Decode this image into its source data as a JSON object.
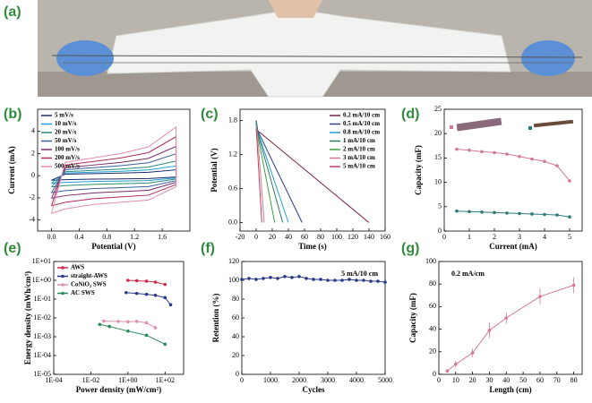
{
  "photo_panel": {
    "label": "(a)"
  },
  "chart_data": [
    {
      "type": "line",
      "label": "(b)",
      "x_label": "Potential (V)",
      "y_label": "Current (mA)",
      "xlim": [
        -0.2,
        2.0
      ],
      "xticks": [
        {
          "value": 0,
          "label": "0.0"
        },
        0.4,
        0.8,
        1.2,
        1.6
      ],
      "ylim": [
        -5,
        6
      ],
      "yticks": [
        -4,
        -2,
        0,
        2,
        4
      ],
      "legend": "upper left",
      "marker": false,
      "x": [
        0,
        0.2,
        0.6,
        1.0,
        1.4,
        1.8,
        1.8,
        1.4,
        1.0,
        0.6,
        0.2,
        0
      ],
      "series": [
        {
          "name": "5 mV/s",
          "color": "#1f2a6b",
          "values": [
            -0.41,
            0.14,
            0.19,
            0.24,
            0.31,
            0.53,
            -0.12,
            -0.26,
            -0.29,
            -0.31,
            -0.36,
            -0.41
          ]
        },
        {
          "name": "10 mV/s",
          "color": "#1e9fd6",
          "values": [
            -0.68,
            0.24,
            0.32,
            0.4,
            0.52,
            0.88,
            -0.2,
            -0.44,
            -0.48,
            -0.52,
            -0.6,
            -0.68
          ]
        },
        {
          "name": "20 mV/s",
          "color": "#2a8a7a",
          "values": [
            -1.02,
            0.36,
            0.48,
            0.6,
            0.78,
            1.32,
            -0.3,
            -0.66,
            -0.72,
            -0.78,
            -0.9,
            -1.02
          ]
        },
        {
          "name": "50 mV/s",
          "color": "#3a5fa0",
          "values": [
            -1.53,
            0.54,
            0.72,
            0.9,
            1.17,
            1.98,
            -0.45,
            -0.99,
            -1.08,
            -1.17,
            -1.35,
            -1.53
          ]
        },
        {
          "name": "100 mV/s",
          "color": "#7a2a6a",
          "values": [
            -2.04,
            0.72,
            0.96,
            1.2,
            1.56,
            2.64,
            -0.6,
            -1.32,
            -1.44,
            -1.56,
            -1.8,
            -2.04
          ]
        },
        {
          "name": "200 mV/s",
          "color": "#b02a5a",
          "values": [
            -2.72,
            0.96,
            1.28,
            1.6,
            2.08,
            3.52,
            -0.8,
            -1.76,
            -1.92,
            -2.08,
            -2.4,
            -2.72
          ]
        },
        {
          "name": "500 mV/s",
          "color": "#e08fb0",
          "values": [
            -3.4,
            1.2,
            1.6,
            2.0,
            2.6,
            4.4,
            -1.0,
            -2.2,
            -2.4,
            -2.6,
            -3.0,
            -3.4
          ]
        }
      ]
    },
    {
      "type": "line",
      "label": "(c)",
      "x_label": "Time (s)",
      "y_label": "Potential (V)",
      "xlim": [
        -20,
        160
      ],
      "xticks": [
        -20,
        0,
        20,
        40,
        60,
        80,
        100,
        120,
        140,
        160
      ],
      "ylim": [
        -0.15,
        2.0
      ],
      "yticks": [
        {
          "value": 0,
          "label": "0.0"
        },
        0.6,
        1.2,
        1.8
      ],
      "legend": "upper right",
      "marker": false,
      "series": [
        {
          "name": "0.2 mA/10 cm",
          "color": "#7a1f4a",
          "x": [
            0,
            2,
            140
          ],
          "values": [
            1.8,
            1.62,
            0
          ]
        },
        {
          "name": "0.5 mA/10 cm",
          "color": "#2a3f8f",
          "x": [
            0,
            2,
            57
          ],
          "values": [
            1.8,
            1.62,
            0
          ]
        },
        {
          "name": "0.8 mA/10 cm",
          "color": "#1e9fd6",
          "x": [
            0,
            2,
            40
          ],
          "values": [
            1.78,
            1.6,
            0
          ]
        },
        {
          "name": "1  mA/10 cm",
          "color": "#2a7a6a",
          "x": [
            0,
            2,
            33
          ],
          "values": [
            1.76,
            1.58,
            0
          ]
        },
        {
          "name": "2  mA/10 cm",
          "color": "#3da33d",
          "x": [
            0,
            2,
            23
          ],
          "values": [
            1.72,
            1.54,
            0
          ]
        },
        {
          "name": "3  mA/10 cm",
          "color": "#d07b8f",
          "x": [
            0,
            2,
            10
          ],
          "values": [
            1.7,
            1.5,
            0
          ]
        },
        {
          "name": "5  mA/10 cm",
          "color": "#c04060",
          "x": [
            0,
            1,
            7
          ],
          "values": [
            1.66,
            1.46,
            0
          ]
        }
      ]
    },
    {
      "type": "line",
      "label": "(d)",
      "x_label": "Current (mA)",
      "y_label": "Capacity (mF)",
      "xlim": [
        0,
        5.5
      ],
      "xticks": [
        0,
        1,
        2,
        3,
        4,
        5
      ],
      "ylim": [
        0,
        25
      ],
      "yticks": [
        0,
        5,
        10,
        15,
        20,
        25
      ],
      "marker": true,
      "x": [
        0.5,
        1,
        1.5,
        2,
        2.5,
        3,
        3.5,
        4,
        4.5,
        5
      ],
      "series": [
        {
          "color": "#d4789a",
          "values": [
            16.8,
            16.6,
            16.3,
            16.1,
            15.8,
            15.3,
            14.8,
            14.3,
            13.4,
            10.3
          ]
        },
        {
          "color": "#2a7a7a",
          "values": [
            4.1,
            4.0,
            3.9,
            3.8,
            3.7,
            3.6,
            3.5,
            3.4,
            3.3,
            2.9
          ]
        }
      ]
    },
    {
      "type": "line",
      "label": "(e)",
      "x_label": "Power density (mW/cm²)",
      "y_label": "Energy density (mWh/cm³)",
      "xscale": "log",
      "yscale": "log",
      "xlim": [
        0.0001,
        1000
      ],
      "xticks": [
        {
          "value": 0.0001,
          "label": "1E-04"
        },
        {
          "value": 0.01,
          "label": "1E-02"
        },
        {
          "value": 1,
          "label": "1E+00"
        },
        {
          "value": 100,
          "label": "1E+02"
        }
      ],
      "ylim": [
        1e-05,
        10
      ],
      "yticks": [
        {
          "value": 1e-05,
          "label": "1E-05"
        },
        {
          "value": 0.0001,
          "label": "1E-04"
        },
        {
          "value": 0.001,
          "label": "1E-03"
        },
        {
          "value": 0.01,
          "label": "1E-02"
        },
        {
          "value": 0.1,
          "label": "1E-01"
        },
        {
          "value": 1,
          "label": "1E+00"
        },
        {
          "value": 10,
          "label": "1E+01"
        }
      ],
      "legend": "upper left",
      "marker": true,
      "series": [
        {
          "name": "AWS",
          "color": "#d02a4a",
          "x": [
            1,
            3,
            10,
            30,
            100
          ],
          "values": [
            1,
            0.95,
            0.9,
            0.8,
            0.6
          ]
        },
        {
          "name": "straight-AWS",
          "color": "#2a3a8a",
          "x": [
            0.8,
            3,
            10,
            30,
            100,
            200
          ],
          "values": [
            0.22,
            0.2,
            0.18,
            0.16,
            0.12,
            0.05
          ]
        },
        {
          "name": "CoNiO₂ SWS",
          "color": "#e08fb0",
          "x": [
            0.05,
            0.3,
            1,
            3,
            10,
            30
          ],
          "values": [
            0.0068,
            0.0065,
            0.0063,
            0.0065,
            0.0055,
            0.003
          ]
        },
        {
          "name": "AC SWS",
          "color": "#2a8a5a",
          "x": [
            0.03,
            0.1,
            1,
            10,
            100
          ],
          "values": [
            0.0045,
            0.0035,
            0.002,
            0.0012,
            0.0004
          ]
        }
      ]
    },
    {
      "type": "line",
      "label": "(f)",
      "x_label": "Cycles",
      "y_label": "Retention (%)",
      "annotation": "5 mA/10 cm",
      "xlim": [
        0,
        5000
      ],
      "xticks": [
        0,
        1000,
        2000,
        3000,
        4000,
        5000
      ],
      "ylim": [
        0,
        120
      ],
      "yticks": [
        0,
        20,
        40,
        60,
        80,
        100,
        120
      ],
      "marker": true,
      "x": [
        0,
        250,
        500,
        750,
        1000,
        1250,
        1500,
        1750,
        2000,
        2250,
        2500,
        2750,
        3000,
        3250,
        3500,
        3750,
        4000,
        4250,
        4500,
        4750,
        5000
      ],
      "series": [
        {
          "color": "#2a3a8a",
          "values": [
            101,
            102,
            101,
            102,
            103,
            102,
            104,
            103,
            104,
            102,
            101,
            101,
            100,
            100,
            100,
            101,
            100,
            100,
            99,
            99,
            98
          ]
        }
      ]
    },
    {
      "type": "line",
      "label": "(g)",
      "x_label": "Length (cm)",
      "y_label": "Capacity (mF)",
      "annotation": "0.2 mA/cm",
      "xlim": [
        0,
        85
      ],
      "xticks": [
        0,
        10,
        20,
        30,
        40,
        50,
        60,
        70,
        80
      ],
      "ylim": [
        0,
        100
      ],
      "yticks": [
        0,
        20,
        40,
        60,
        80,
        100
      ],
      "marker": true,
      "x": [
        5,
        10,
        20,
        30,
        40,
        60,
        80
      ],
      "series": [
        {
          "color": "#d4789a",
          "values": [
            3,
            9,
            19,
            39,
            50,
            69,
            79
          ],
          "errors": [
            1,
            3,
            4,
            7,
            5,
            7,
            7
          ]
        }
      ]
    }
  ]
}
